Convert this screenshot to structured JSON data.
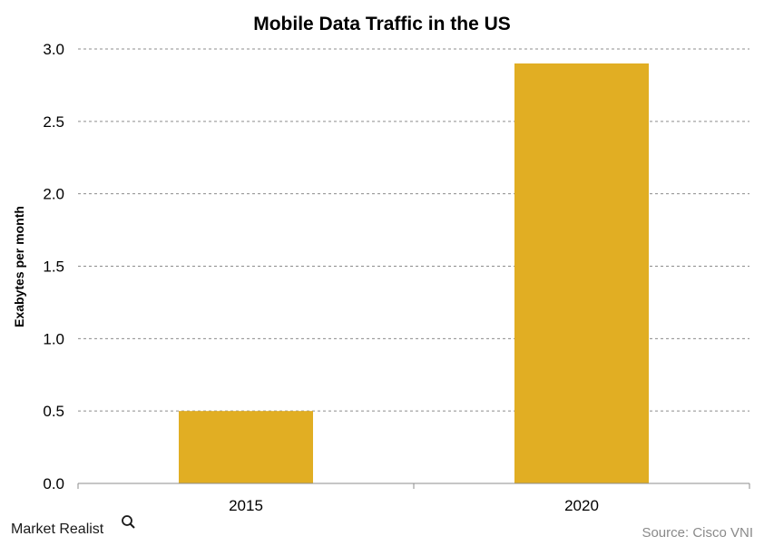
{
  "colors": {
    "bar": "#E1AE23",
    "grid": "#8C8C8C",
    "source_text": "#8A8A8A"
  },
  "branding": {
    "logo_text": "Market Realist",
    "logo_icon": "magnifier-icon"
  },
  "source_note": "Source: Cisco VNI",
  "chart_data": {
    "type": "bar",
    "title": "Mobile Data Traffic in the US",
    "xlabel": "",
    "ylabel": "Exabytes per month",
    "categories": [
      "2015",
      "2020"
    ],
    "series": [
      {
        "values": [
          0.5,
          2.9
        ]
      }
    ],
    "ylim": [
      0,
      3.0
    ],
    "yticks": [
      "0.0",
      "0.5",
      "1.0",
      "1.5",
      "2.0",
      "2.5",
      "3.0"
    ],
    "grid": true,
    "legend": "none"
  }
}
